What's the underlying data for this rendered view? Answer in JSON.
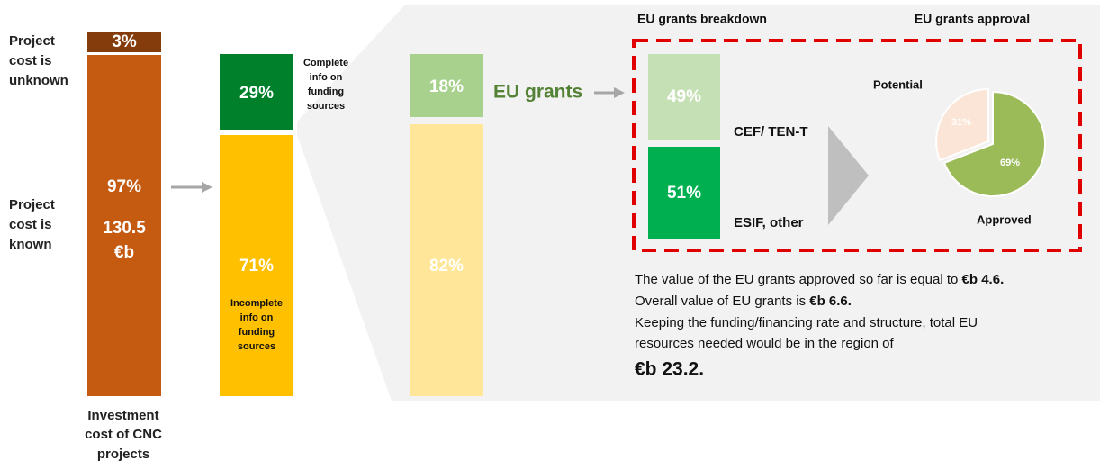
{
  "left_labels": {
    "unknown": [
      "Project",
      "cost is",
      "unknown"
    ],
    "known": [
      "Project",
      "cost is",
      "known"
    ]
  },
  "investment_bar": {
    "unknown_share": "3%",
    "known_share": "97%",
    "known_value": [
      "130.5",
      "€b"
    ],
    "caption": [
      "Investment",
      "cost of CNC",
      "projects"
    ]
  },
  "info_bar": {
    "complete_share": "29%",
    "complete_label": [
      "Complete",
      "info on",
      "funding",
      "sources"
    ],
    "incomplete_share": "71%",
    "incomplete_label": [
      "Incomplete",
      "info on",
      "funding",
      "sources"
    ]
  },
  "funding_bar": {
    "eu_share": "18%",
    "other_share": "82%",
    "eu_label": "EU grants"
  },
  "breakdown": {
    "title": "EU grants breakdown",
    "items": [
      {
        "share": "49%",
        "label": "CEF/ TEN-T"
      },
      {
        "share": "51%",
        "label": "ESIF, other"
      }
    ]
  },
  "approval": {
    "title": "EU grants approval",
    "potential_label": "Potential",
    "potential_share": "31%",
    "approved_label": "Approved",
    "approved_share": "69%"
  },
  "note": {
    "line1": [
      "The value of the EU grants approved so far is equal to ",
      "€b 4.6."
    ],
    "line2": [
      "Overall value of EU grants is ",
      "€b 6.6."
    ],
    "line3": "Keeping the funding/financing rate and structure, total EU",
    "line4": "resources needed would be in the region of",
    "total": "€b 23.2."
  }
}
